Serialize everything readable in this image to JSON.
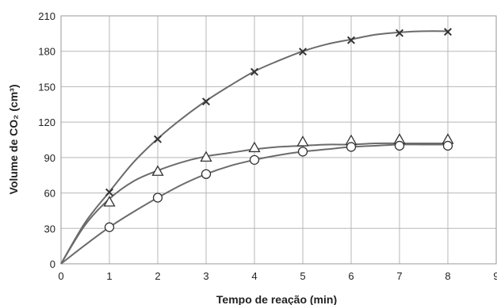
{
  "chart_data": {
    "type": "scatter",
    "xlabel": "Tempo de reação (min)",
    "ylabel": "Volume de CO₂ (cm³)",
    "xlim": [
      0,
      9
    ],
    "ylim": [
      0,
      210
    ],
    "x_ticks": [
      0,
      1,
      2,
      3,
      4,
      5,
      6,
      7,
      8,
      9
    ],
    "y_ticks": [
      0,
      30,
      60,
      90,
      120,
      150,
      180,
      210
    ],
    "grid": true,
    "series": [
      {
        "marker": "x",
        "x": [
          1,
          2,
          3,
          4,
          5,
          6,
          7,
          8
        ],
        "y": [
          61,
          106,
          138,
          163,
          180,
          190,
          196,
          197
        ],
        "curve": [
          [
            0,
            0
          ],
          [
            0.5,
            35
          ],
          [
            1,
            61
          ],
          [
            1.5,
            86
          ],
          [
            2,
            106
          ],
          [
            2.5,
            123
          ],
          [
            3,
            138
          ],
          [
            3.5,
            151
          ],
          [
            4,
            163
          ],
          [
            4.5,
            172
          ],
          [
            5,
            180
          ],
          [
            5.5,
            186
          ],
          [
            6,
            190
          ],
          [
            6.5,
            194
          ],
          [
            7,
            196
          ],
          [
            7.5,
            197
          ],
          [
            8,
            197
          ]
        ]
      },
      {
        "marker": "triangle",
        "x": [
          1,
          2,
          3,
          4,
          5,
          6,
          7,
          8
        ],
        "y": [
          52,
          78,
          90,
          98,
          103,
          104,
          105,
          105
        ],
        "curve": [
          [
            0,
            0
          ],
          [
            0.5,
            33
          ],
          [
            1,
            55
          ],
          [
            1.5,
            70
          ],
          [
            2,
            79
          ],
          [
            2.5,
            86
          ],
          [
            3,
            91
          ],
          [
            3.5,
            94
          ],
          [
            4,
            97
          ],
          [
            4.5,
            99
          ],
          [
            5,
            100
          ],
          [
            5.5,
            101
          ],
          [
            6,
            101
          ],
          [
            6.5,
            102
          ],
          [
            7,
            102
          ],
          [
            8,
            102
          ]
        ]
      },
      {
        "marker": "circle",
        "x": [
          1,
          2,
          3,
          4,
          5,
          6,
          7,
          8
        ],
        "y": [
          31,
          56,
          76,
          88,
          95,
          99,
          100,
          100
        ],
        "curve": [
          [
            0,
            0
          ],
          [
            0.5,
            16
          ],
          [
            1,
            31
          ],
          [
            1.5,
            44
          ],
          [
            2,
            56
          ],
          [
            2.5,
            67
          ],
          [
            3,
            76
          ],
          [
            3.5,
            83
          ],
          [
            4,
            88
          ],
          [
            4.5,
            92
          ],
          [
            5,
            95
          ],
          [
            5.5,
            97
          ],
          [
            6,
            99
          ],
          [
            6.5,
            100
          ],
          [
            7,
            101
          ],
          [
            7.5,
            101
          ],
          [
            8,
            101
          ]
        ]
      }
    ]
  }
}
